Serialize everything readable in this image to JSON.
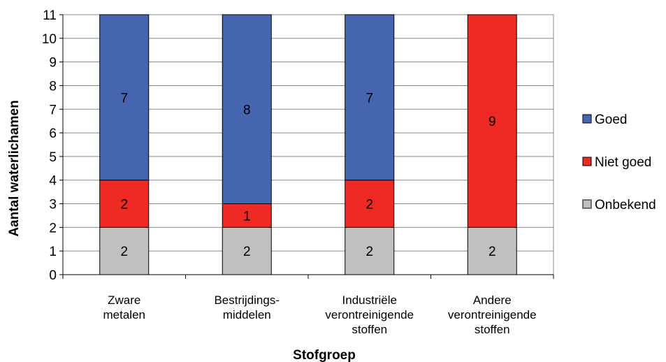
{
  "chart_data": {
    "type": "bar",
    "stacked": true,
    "categories": [
      [
        "Zware",
        "metalen"
      ],
      [
        "Bestrijdings-",
        "middelen"
      ],
      [
        "Industriële",
        "verontreinigende",
        "stoffen"
      ],
      [
        "Andere",
        "verontreinigende",
        "stoffen"
      ]
    ],
    "series": [
      {
        "name": "Onbekend",
        "color": "#c0c0c0",
        "values": [
          2,
          2,
          2,
          2
        ]
      },
      {
        "name": "Niet goed",
        "color": "#ee2a24",
        "values": [
          2,
          1,
          2,
          9
        ]
      },
      {
        "name": "Goed",
        "color": "#4665b1",
        "values": [
          7,
          8,
          7,
          0
        ]
      }
    ],
    "xlabel": "Stofgroep",
    "ylabel": "Aantal waterlichamen",
    "ylim": [
      0,
      11
    ],
    "yticks": [
      0,
      1,
      2,
      3,
      4,
      5,
      6,
      7,
      8,
      9,
      10,
      11
    ],
    "grid": true,
    "legend_placement": "right",
    "legend_order": [
      "Goed",
      "Niet goed",
      "Onbekend"
    ]
  }
}
